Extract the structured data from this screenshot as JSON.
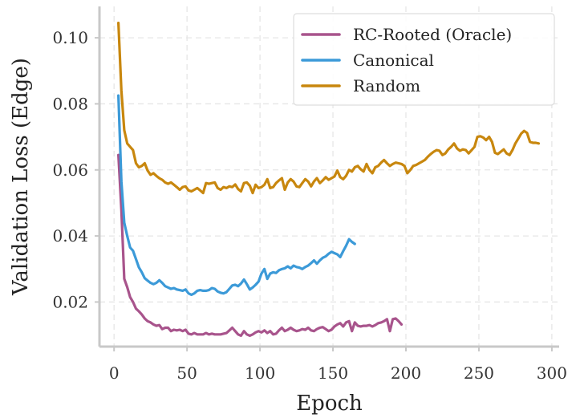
{
  "chart_data": {
    "type": "line",
    "title": "",
    "xlabel": "Epoch",
    "ylabel": "Validation Loss (Edge)",
    "xlim": [
      -10,
      305
    ],
    "ylim": [
      0.0065,
      0.1095
    ],
    "xticks": [
      0,
      50,
      100,
      150,
      200,
      250,
      300
    ],
    "xtick_labels": [
      "0",
      "50",
      "100",
      "150",
      "200",
      "250",
      "300"
    ],
    "yticks": [
      0.02,
      0.04,
      0.06,
      0.08,
      0.1
    ],
    "ytick_labels": [
      "0.02",
      "0.04",
      "0.06",
      "0.08",
      "0.10"
    ],
    "grid": true,
    "legend_position": "top-right",
    "series": [
      {
        "name": "RC-Rooted (Oracle)",
        "color": "#a8548c",
        "x": [
          3,
          5,
          7,
          9,
          11,
          13,
          15,
          17,
          19,
          21,
          23,
          25,
          27,
          29,
          31,
          33,
          35,
          37,
          39,
          41,
          43,
          45,
          47,
          49,
          51,
          53,
          55,
          57,
          59,
          61,
          63,
          65,
          67,
          69,
          71,
          73,
          75,
          77,
          79,
          81,
          83,
          85,
          87,
          89,
          91,
          93,
          95,
          97,
          99,
          101,
          103,
          105,
          107,
          109,
          111,
          113,
          115,
          117,
          119,
          121,
          123,
          125,
          127,
          129,
          131,
          133,
          135,
          137,
          139,
          141,
          143,
          145,
          147,
          149,
          151,
          153,
          155,
          157,
          159,
          161,
          163,
          165,
          167,
          169,
          171,
          173,
          175,
          177,
          179,
          181,
          183,
          185,
          187,
          189,
          191,
          193,
          195,
          197
        ],
        "y": [
          0.0645,
          0.048,
          0.027,
          0.0245,
          0.0215,
          0.02,
          0.018,
          0.0172,
          0.0162,
          0.015,
          0.0142,
          0.0138,
          0.0132,
          0.0128,
          0.013,
          0.0118,
          0.0122,
          0.0122,
          0.0112,
          0.0116,
          0.0114,
          0.0116,
          0.0112,
          0.0116,
          0.0104,
          0.0102,
          0.0106,
          0.0102,
          0.0102,
          0.0102,
          0.0106,
          0.0102,
          0.0104,
          0.0102,
          0.0102,
          0.0102,
          0.0104,
          0.0106,
          0.0114,
          0.0122,
          0.0112,
          0.0102,
          0.0098,
          0.0112,
          0.0102,
          0.0098,
          0.0102,
          0.0108,
          0.0112,
          0.0108,
          0.0114,
          0.0106,
          0.0112,
          0.0102,
          0.0104,
          0.0114,
          0.0122,
          0.0112,
          0.0116,
          0.0122,
          0.0116,
          0.0112,
          0.0114,
          0.0118,
          0.0116,
          0.0122,
          0.0114,
          0.0112,
          0.0118,
          0.0122,
          0.0124,
          0.0118,
          0.0112,
          0.0116,
          0.0126,
          0.0132,
          0.0136,
          0.0126,
          0.0138,
          0.0142,
          0.0112,
          0.0138,
          0.0128,
          0.0126,
          0.0128,
          0.0128,
          0.013,
          0.0126,
          0.013,
          0.0136,
          0.0138,
          0.0142,
          0.0148,
          0.0112,
          0.0148,
          0.015,
          0.0142,
          0.0132
        ]
      },
      {
        "name": "Canonical",
        "color": "#3c9ad8",
        "x": [
          3,
          5,
          7,
          9,
          11,
          13,
          15,
          17,
          19,
          21,
          23,
          25,
          27,
          29,
          31,
          33,
          35,
          37,
          39,
          41,
          43,
          45,
          47,
          49,
          51,
          53,
          55,
          57,
          59,
          61,
          63,
          65,
          67,
          69,
          71,
          73,
          75,
          77,
          79,
          81,
          83,
          85,
          87,
          89,
          91,
          93,
          95,
          97,
          99,
          101,
          103,
          105,
          107,
          109,
          111,
          113,
          115,
          117,
          119,
          121,
          123,
          125,
          127,
          129,
          131,
          133,
          135,
          137,
          139,
          141,
          143,
          145,
          147,
          149,
          151,
          153,
          155,
          157,
          159,
          161,
          163,
          165
        ],
        "y": [
          0.0825,
          0.0565,
          0.044,
          0.04,
          0.0365,
          0.0355,
          0.033,
          0.0305,
          0.029,
          0.0272,
          0.0265,
          0.0258,
          0.0254,
          0.0258,
          0.0266,
          0.0258,
          0.0248,
          0.0244,
          0.024,
          0.0242,
          0.0238,
          0.0236,
          0.0234,
          0.0238,
          0.0226,
          0.0222,
          0.0226,
          0.0234,
          0.0236,
          0.0234,
          0.0234,
          0.0236,
          0.0242,
          0.024,
          0.0232,
          0.0228,
          0.0226,
          0.023,
          0.024,
          0.025,
          0.0252,
          0.0248,
          0.0256,
          0.0268,
          0.0254,
          0.0238,
          0.0244,
          0.0252,
          0.0262,
          0.0286,
          0.03,
          0.027,
          0.0286,
          0.029,
          0.0288,
          0.0296,
          0.03,
          0.0302,
          0.0308,
          0.0302,
          0.031,
          0.0306,
          0.0304,
          0.03,
          0.0306,
          0.031,
          0.0318,
          0.0326,
          0.0316,
          0.0326,
          0.0334,
          0.0338,
          0.0346,
          0.0352,
          0.0348,
          0.0344,
          0.0336,
          0.0354,
          0.037,
          0.039,
          0.0382,
          0.0376
        ]
      },
      {
        "name": "Random",
        "color": "#c8870e",
        "x": [
          3,
          5,
          7,
          9,
          11,
          13,
          15,
          17,
          19,
          21,
          23,
          25,
          27,
          29,
          31,
          33,
          35,
          37,
          39,
          41,
          43,
          45,
          47,
          49,
          51,
          53,
          55,
          57,
          59,
          61,
          63,
          65,
          67,
          69,
          71,
          73,
          75,
          77,
          79,
          81,
          83,
          85,
          87,
          89,
          91,
          93,
          95,
          97,
          99,
          101,
          103,
          105,
          107,
          109,
          111,
          113,
          115,
          117,
          119,
          121,
          123,
          125,
          127,
          129,
          131,
          133,
          135,
          137,
          139,
          141,
          143,
          145,
          147,
          149,
          151,
          153,
          155,
          157,
          159,
          161,
          163,
          165,
          167,
          169,
          171,
          173,
          175,
          177,
          179,
          181,
          183,
          185,
          187,
          189,
          191,
          193,
          195,
          197,
          199,
          201,
          203,
          205,
          207,
          209,
          211,
          213,
          215,
          217,
          219,
          221,
          223,
          225,
          227,
          229,
          231,
          233,
          235,
          237,
          239,
          241,
          243,
          245,
          247,
          249,
          251,
          253,
          255,
          257,
          259,
          261,
          263,
          265,
          267,
          269,
          271,
          273,
          275,
          277,
          279,
          281,
          283,
          285,
          287,
          289,
          291
        ],
        "y": [
          0.1045,
          0.084,
          0.072,
          0.068,
          0.067,
          0.066,
          0.062,
          0.0608,
          0.0612,
          0.062,
          0.0598,
          0.0585,
          0.059,
          0.0582,
          0.0575,
          0.057,
          0.0562,
          0.0558,
          0.0562,
          0.0555,
          0.0548,
          0.054,
          0.0548,
          0.055,
          0.0538,
          0.0535,
          0.054,
          0.0545,
          0.0538,
          0.053,
          0.056,
          0.0558,
          0.056,
          0.0562,
          0.0545,
          0.054,
          0.0548,
          0.0545,
          0.055,
          0.0548,
          0.0556,
          0.0542,
          0.0535,
          0.056,
          0.0562,
          0.0552,
          0.053,
          0.0555,
          0.0545,
          0.0548,
          0.0555,
          0.0572,
          0.0545,
          0.0548,
          0.056,
          0.0568,
          0.0575,
          0.054,
          0.0562,
          0.0572,
          0.0565,
          0.055,
          0.0548,
          0.056,
          0.0572,
          0.0565,
          0.055,
          0.0565,
          0.0575,
          0.056,
          0.0568,
          0.0578,
          0.057,
          0.0575,
          0.058,
          0.0598,
          0.0578,
          0.0572,
          0.0582,
          0.06,
          0.0595,
          0.0608,
          0.0612,
          0.0602,
          0.0595,
          0.0618,
          0.06,
          0.059,
          0.0608,
          0.0612,
          0.0622,
          0.063,
          0.062,
          0.0612,
          0.0618,
          0.0622,
          0.062,
          0.0618,
          0.0612,
          0.059,
          0.06,
          0.0612,
          0.0615,
          0.062,
          0.0625,
          0.063,
          0.064,
          0.0648,
          0.0655,
          0.066,
          0.0658,
          0.0645,
          0.065,
          0.0662,
          0.067,
          0.068,
          0.0665,
          0.0658,
          0.0662,
          0.066,
          0.065,
          0.066,
          0.067,
          0.07,
          0.0702,
          0.0698,
          0.069,
          0.07,
          0.0685,
          0.0652,
          0.0648,
          0.0655,
          0.0662,
          0.065,
          0.0645,
          0.066,
          0.068,
          0.0695,
          0.071,
          0.0718,
          0.0712,
          0.0685,
          0.0682,
          0.0682,
          0.068
        ]
      }
    ]
  }
}
